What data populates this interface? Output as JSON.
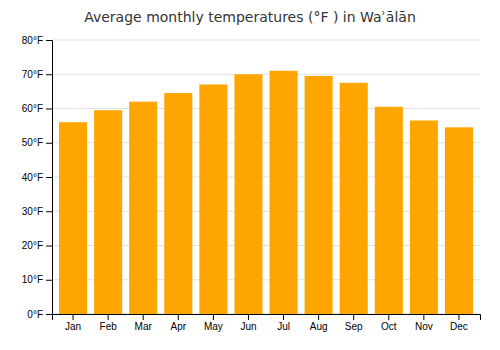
{
  "chart_data": {
    "type": "bar",
    "title": "Average monthly temperatures (°F ) in Waʾālān",
    "categories": [
      "Jan",
      "Feb",
      "Mar",
      "Apr",
      "May",
      "Jun",
      "Jul",
      "Aug",
      "Sep",
      "Oct",
      "Nov",
      "Dec"
    ],
    "values": [
      56,
      59.5,
      62,
      64.5,
      67,
      70,
      71,
      69.5,
      67.5,
      60.5,
      56.5,
      54.5
    ],
    "color": "#FFA500",
    "ylim": [
      0,
      80
    ],
    "yticks": [
      {
        "value": 0,
        "label": "0°F"
      },
      {
        "value": 10,
        "label": "10°F"
      },
      {
        "value": 20,
        "label": "20°F"
      },
      {
        "value": 30,
        "label": "30°F"
      },
      {
        "value": 40,
        "label": "40°F"
      },
      {
        "value": 50,
        "label": "50°F"
      },
      {
        "value": 60,
        "label": "60°F"
      },
      {
        "value": 70,
        "label": "70°F"
      },
      {
        "value": 80,
        "label": "80°F"
      }
    ],
    "grid": true
  }
}
